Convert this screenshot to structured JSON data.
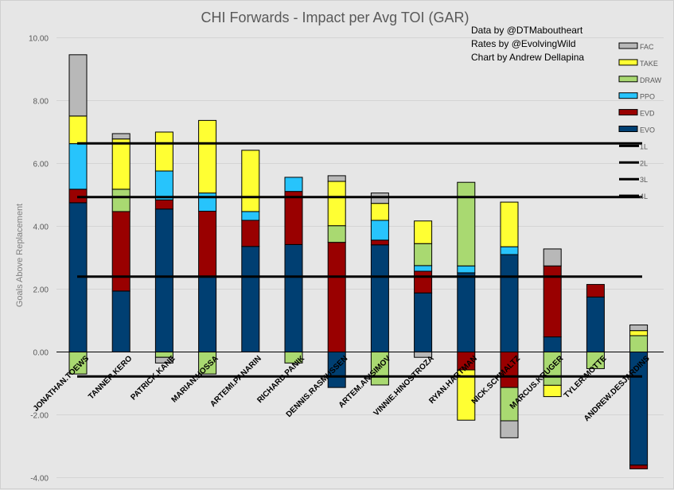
{
  "chart_data": {
    "type": "bar",
    "stacked": true,
    "title": "CHI Forwards - Impact per Avg TOI (GAR)",
    "xlabel": "",
    "ylabel": "Goals Above Replacement",
    "ylim": [
      -4,
      10
    ],
    "yticks": [
      "-4.00",
      "-2.00",
      "0.00",
      "2.00",
      "4.00",
      "6.00",
      "8.00",
      "10.00"
    ],
    "ytick_values": [
      -4,
      -2,
      0,
      2,
      4,
      6,
      8,
      10
    ],
    "grid": true,
    "legend_position": "right",
    "credits": [
      "Data by @DTMaboutheart",
      "Rates by @EvolvingWild",
      "Chart by Andrew Dellapina"
    ],
    "categories": [
      "JONATHAN.TOEWS",
      "TANNER.KERO",
      "PATRICK.KANE",
      "MARIAN.HOSSA",
      "ARTEMI.PANARIN",
      "RICHARD.PANIK",
      "DENNIS.RASMUSSEN",
      "ARTEM.ANISIMOV",
      "VINNIE.HINOSTROZA",
      "RYAN.HARTMAN",
      "NICK.SCHMALTZ",
      "MARCUS.KRUGER",
      "TYLER.MOTTE",
      "ANDREW.DESJARDINS"
    ],
    "series": [
      {
        "name": "EVO",
        "color": "#003f72",
        "values": [
          4.75,
          1.94,
          4.55,
          2.41,
          3.36,
          3.42,
          -1.13,
          3.41,
          1.88,
          2.52,
          3.1,
          0.48,
          1.75,
          -3.6
        ]
      },
      {
        "name": "EVD",
        "color": "#990000",
        "values": [
          0.43,
          2.53,
          0.29,
          2.07,
          0.83,
          1.69,
          3.49,
          0.15,
          0.69,
          -0.57,
          -1.13,
          2.26,
          0.4,
          -0.12
        ]
      },
      {
        "name": "PPO",
        "color": "#27c4fc",
        "values": [
          1.45,
          0,
          0.92,
          0.58,
          0.28,
          0.45,
          0,
          0.63,
          0.18,
          0.22,
          0.25,
          0,
          0,
          0
        ]
      },
      {
        "name": "DRAW",
        "color": "#a9d971",
        "values": [
          -0.7,
          0.71,
          -0.17,
          -0.7,
          0,
          -0.35,
          0.53,
          -1.05,
          0.7,
          2.66,
          -1.06,
          -1.06,
          -0.53,
          0.52
        ]
      },
      {
        "name": "TAKE",
        "color": "#ffff33",
        "values": [
          0.88,
          1.6,
          1.24,
          2.31,
          1.95,
          0,
          1.41,
          0.54,
          0.72,
          -1.6,
          1.42,
          -0.36,
          0,
          0.16
        ]
      },
      {
        "name": "FAC",
        "color": "#b8b8b8",
        "values": [
          1.95,
          0.17,
          -0.18,
          0,
          0,
          0,
          0.18,
          0.33,
          -0.17,
          0,
          -0.54,
          0.54,
          0,
          0.18
        ]
      }
    ],
    "reference_lines": [
      {
        "name": "1L",
        "value": 6.64
      },
      {
        "name": "2L",
        "value": 4.93
      },
      {
        "name": "3L",
        "value": 2.4
      },
      {
        "name": "4L",
        "value": -0.78
      }
    ],
    "legend_order": [
      "FAC",
      "TAKE",
      "DRAW",
      "PPO",
      "EVD",
      "EVO",
      "1L",
      "2L",
      "3L",
      "4L"
    ]
  }
}
